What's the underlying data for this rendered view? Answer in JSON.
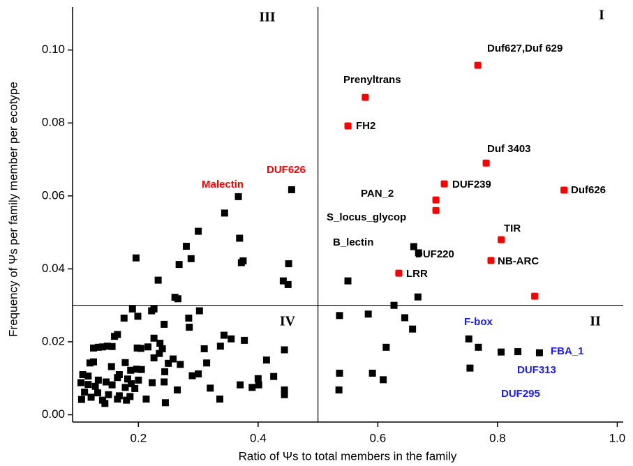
{
  "chart_data": {
    "type": "scatter",
    "x_label": "Ratio of Ψs to total members in the family",
    "y_label": "Frequency of Ψs per family member per ecotype",
    "xlim": [
      0.09,
      1.01
    ],
    "ylim": [
      -0.002,
      0.1118
    ],
    "xticks": [
      0.2,
      0.4,
      0.6,
      0.8,
      {
        "value": 1,
        "label": "1.0"
      }
    ],
    "yticks": [
      {
        "value": 0,
        "label": "0.00"
      },
      {
        "value": 0.02,
        "label": "0.02"
      },
      {
        "value": 0.04,
        "label": "0.04"
      },
      {
        "value": 0.06,
        "label": "0.06"
      },
      {
        "value": 0.08,
        "label": "0.08"
      },
      {
        "value": 0.1,
        "label": "0.10"
      }
    ],
    "vline": 0.5,
    "hline": 0.03,
    "series": [
      {
        "color": "#000000",
        "x": [
          0.456,
          0.367,
          0.344,
          0.3,
          0.369,
          0.28,
          0.196,
          0.288,
          0.268,
          0.375,
          0.372,
          0.451,
          0.233,
          0.442,
          0.45,
          0.261,
          0.266,
          0.55,
          0.66,
          0.668,
          0.667,
          0.627,
          0.536,
          0.584,
          0.645,
          0.658,
          0.614,
          0.536,
          0.591,
          0.609,
          0.535,
          0.752,
          0.768,
          0.754,
          0.806,
          0.834,
          0.87,
          0.19,
          0.199,
          0.176,
          0.222,
          0.226,
          0.302,
          0.284,
          0.243,
          0.285,
          0.165,
          0.16,
          0.226,
          0.343,
          0.355,
          0.377,
          0.236,
          0.216,
          0.204,
          0.14,
          0.148,
          0.133,
          0.125,
          0.156,
          0.198,
          0.24,
          0.31,
          0.337,
          0.444,
          0.414,
          0.235,
          0.226,
          0.258,
          0.178,
          0.119,
          0.125,
          0.25,
          0.27,
          0.314,
          0.155,
          0.197,
          0.205,
          0.4,
          0.426,
          0.244,
          0.187,
          0.168,
          0.107,
          0.116,
          0.29,
          0.3,
          0.182,
          0.133,
          0.146,
          0.165,
          0.2,
          0.188,
          0.223,
          0.104,
          0.116,
          0.128,
          0.156,
          0.178,
          0.194,
          0.243,
          0.265,
          0.32,
          0.37,
          0.39,
          0.401,
          0.444,
          0.444,
          0.11,
          0.132,
          0.15,
          0.168,
          0.186,
          0.121,
          0.105,
          0.14,
          0.165,
          0.18,
          0.213,
          0.245,
          0.144,
          0.336
        ],
        "values": [
          0.0617,
          0.0598,
          0.0553,
          0.0503,
          0.0484,
          0.0462,
          0.043,
          0.0428,
          0.0412,
          0.0422,
          0.0417,
          0.0414,
          0.0369,
          0.0367,
          0.0357,
          0.0322,
          0.0318,
          0.0367,
          0.0461,
          0.0444,
          0.0323,
          0.03,
          0.0272,
          0.0276,
          0.0266,
          0.0235,
          0.0185,
          0.0114,
          0.0114,
          0.0096,
          0.0068,
          0.0208,
          0.0185,
          0.0128,
          0.0172,
          0.0173,
          0.017,
          0.029,
          0.027,
          0.0265,
          0.0285,
          0.029,
          0.0285,
          0.0265,
          0.0248,
          0.024,
          0.022,
          0.0215,
          0.021,
          0.0218,
          0.0208,
          0.0204,
          0.0196,
          0.0186,
          0.0182,
          0.0186,
          0.0188,
          0.0185,
          0.0183,
          0.0187,
          0.0183,
          0.0181,
          0.0181,
          0.0188,
          0.0178,
          0.015,
          0.0168,
          0.0156,
          0.0153,
          0.0143,
          0.0142,
          0.0145,
          0.0141,
          0.0138,
          0.0142,
          0.0132,
          0.0125,
          0.0124,
          0.0099,
          0.0105,
          0.0118,
          0.0122,
          0.011,
          0.011,
          0.0106,
          0.0107,
          0.0112,
          0.0098,
          0.0095,
          0.009,
          0.0102,
          0.0095,
          0.0085,
          0.0088,
          0.0088,
          0.0083,
          0.0078,
          0.0082,
          0.0075,
          0.0072,
          0.009,
          0.0068,
          0.0073,
          0.0082,
          0.0075,
          0.0082,
          0.0068,
          0.0055,
          0.0062,
          0.006,
          0.0055,
          0.0052,
          0.005,
          0.0048,
          0.0042,
          0.004,
          0.0043,
          0.004,
          0.0043,
          0.0033,
          0.0031,
          0.0043
        ]
      },
      {
        "color": "#ff0000",
        "x": [
          0.767,
          0.579,
          0.55,
          0.781,
          0.711,
          0.911,
          0.697,
          0.697,
          0.806,
          0.789,
          0.635,
          0.862
        ],
        "values": [
          0.0958,
          0.087,
          0.0792,
          0.069,
          0.0633,
          0.0616,
          0.0589,
          0.056,
          0.048,
          0.0423,
          0.0388,
          0.0325
        ]
      }
    ],
    "annotations": [
      {
        "text": "Duf627,Duf 629",
        "color": "#000000"
      },
      {
        "text": "Prenyltrans",
        "color": "#000000"
      },
      {
        "text": "FH2",
        "color": "#000000"
      },
      {
        "text": "Duf 3403",
        "color": "#000000"
      },
      {
        "text": "DUF239",
        "color": "#000000"
      },
      {
        "text": "Duf626",
        "color": "#000000"
      },
      {
        "text": "PAN_2",
        "color": "#000000"
      },
      {
        "text": "S_locus_glycop",
        "color": "#000000"
      },
      {
        "text": "B_lectin",
        "color": "#000000"
      },
      {
        "text": "DUF220",
        "color": "#000000"
      },
      {
        "text": "TIR",
        "color": "#000000"
      },
      {
        "text": "NB-ARC",
        "color": "#000000"
      },
      {
        "text": "LRR",
        "color": "#000000"
      },
      {
        "text": "Malectin",
        "color": "#ff0000"
      },
      {
        "text": "DUF626",
        "color": "#ff0000"
      },
      {
        "text": "F-box",
        "color": "#1a1aff"
      },
      {
        "text": "FBA_1",
        "color": "#1a1aff"
      },
      {
        "text": "DUF313",
        "color": "#1a1aff"
      },
      {
        "text": "DUF295",
        "color": "#1a1aff"
      }
    ],
    "quadrant_labels": [
      "I",
      "II",
      "III",
      "IV"
    ]
  }
}
